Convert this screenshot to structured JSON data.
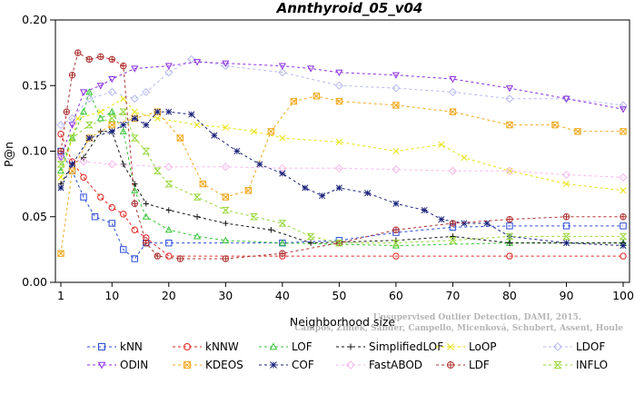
{
  "chart_data": {
    "type": "line",
    "title": "Annthyroid_05_v04",
    "xlabel": "Neighborhood size",
    "ylabel": "P@n",
    "xlim": [
      1,
      100
    ],
    "ylim": [
      0,
      0.2
    ],
    "xticks": [
      1,
      10,
      20,
      30,
      40,
      50,
      60,
      70,
      80,
      90,
      100
    ],
    "yticks": [
      "0.00",
      "0.05",
      "0.10",
      "0.15",
      "0.20"
    ],
    "credit": [
      "Campos, Zimek, Sander, Campello, Micenková, Schubert, Assent, Houle",
      "Unsupervised Outlier Detection, DAMI, 2015."
    ],
    "legend_placement": "bottom",
    "series": [
      {
        "name": "kNN",
        "color": "#2b4cd8",
        "marker": "square",
        "points": [
          [
            1,
            0.1
          ],
          [
            3,
            0.085
          ],
          [
            5,
            0.065
          ],
          [
            7,
            0.05
          ],
          [
            10,
            0.045
          ],
          [
            12,
            0.025
          ],
          [
            14,
            0.018
          ],
          [
            16,
            0.03
          ],
          [
            20,
            0.03
          ],
          [
            40,
            0.03
          ],
          [
            50,
            0.032
          ],
          [
            60,
            0.038
          ],
          [
            70,
            0.042
          ],
          [
            80,
            0.043
          ],
          [
            90,
            0.043
          ],
          [
            100,
            0.043
          ]
        ]
      },
      {
        "name": "kNNW",
        "color": "#e0241f",
        "marker": "circle",
        "points": [
          [
            1,
            0.113
          ],
          [
            3,
            0.092
          ],
          [
            5,
            0.08
          ],
          [
            8,
            0.065
          ],
          [
            10,
            0.057
          ],
          [
            12,
            0.052
          ],
          [
            14,
            0.04
          ],
          [
            16,
            0.034
          ],
          [
            20,
            0.02
          ],
          [
            40,
            0.02
          ],
          [
            60,
            0.02
          ],
          [
            80,
            0.02
          ],
          [
            100,
            0.02
          ]
        ]
      },
      {
        "name": "LOF",
        "color": "#33c433",
        "marker": "triangle-up",
        "points": [
          [
            1,
            0.085
          ],
          [
            3,
            0.11
          ],
          [
            5,
            0.13
          ],
          [
            6,
            0.145
          ],
          [
            8,
            0.125
          ],
          [
            10,
            0.13
          ],
          [
            12,
            0.115
          ],
          [
            14,
            0.07
          ],
          [
            16,
            0.05
          ],
          [
            20,
            0.04
          ],
          [
            25,
            0.035
          ],
          [
            30,
            0.032
          ],
          [
            40,
            0.03
          ],
          [
            60,
            0.028
          ],
          [
            80,
            0.03
          ],
          [
            100,
            0.03
          ]
        ]
      },
      {
        "name": "SimplifiedLOF",
        "color": "#111111",
        "marker": "plus",
        "points": [
          [
            1,
            0.075
          ],
          [
            3,
            0.09
          ],
          [
            5,
            0.095
          ],
          [
            8,
            0.115
          ],
          [
            10,
            0.115
          ],
          [
            12,
            0.09
          ],
          [
            14,
            0.075
          ],
          [
            16,
            0.06
          ],
          [
            20,
            0.055
          ],
          [
            25,
            0.05
          ],
          [
            30,
            0.045
          ],
          [
            38,
            0.04
          ],
          [
            45,
            0.03
          ],
          [
            60,
            0.032
          ],
          [
            70,
            0.035
          ],
          [
            80,
            0.03
          ],
          [
            100,
            0.03
          ]
        ]
      },
      {
        "name": "LoOP",
        "color": "#e8e20e",
        "marker": "x",
        "points": [
          [
            1,
            0.08
          ],
          [
            4,
            0.125
          ],
          [
            8,
            0.13
          ],
          [
            12,
            0.14
          ],
          [
            14,
            0.13
          ],
          [
            18,
            0.125
          ],
          [
            25,
            0.12
          ],
          [
            30,
            0.118
          ],
          [
            35,
            0.115
          ],
          [
            40,
            0.11
          ],
          [
            50,
            0.107
          ],
          [
            60,
            0.1
          ],
          [
            68,
            0.105
          ],
          [
            72,
            0.095
          ],
          [
            80,
            0.085
          ],
          [
            90,
            0.075
          ],
          [
            100,
            0.07
          ]
        ]
      },
      {
        "name": "LDOF",
        "color": "#b6b9ee",
        "marker": "diamond",
        "points": [
          [
            1,
            0.12
          ],
          [
            3,
            0.125
          ],
          [
            6,
            0.14
          ],
          [
            10,
            0.145
          ],
          [
            14,
            0.14
          ],
          [
            16,
            0.145
          ],
          [
            20,
            0.16
          ],
          [
            24,
            0.17
          ],
          [
            30,
            0.165
          ],
          [
            40,
            0.16
          ],
          [
            50,
            0.15
          ],
          [
            60,
            0.148
          ],
          [
            70,
            0.145
          ],
          [
            80,
            0.14
          ],
          [
            90,
            0.14
          ],
          [
            100,
            0.135
          ]
        ]
      },
      {
        "name": "ODIN",
        "color": "#8b2ee0",
        "marker": "triangle-down",
        "points": [
          [
            1,
            0.095
          ],
          [
            3,
            0.12
          ],
          [
            5,
            0.145
          ],
          [
            8,
            0.15
          ],
          [
            10,
            0.155
          ],
          [
            14,
            0.163
          ],
          [
            20,
            0.165
          ],
          [
            25,
            0.168
          ],
          [
            30,
            0.167
          ],
          [
            40,
            0.165
          ],
          [
            45,
            0.163
          ],
          [
            50,
            0.16
          ],
          [
            60,
            0.158
          ],
          [
            70,
            0.155
          ],
          [
            80,
            0.148
          ],
          [
            90,
            0.14
          ],
          [
            100,
            0.132
          ]
        ]
      },
      {
        "name": "KDEOS",
        "color": "#f0a81c",
        "marker": "boxed-cross",
        "points": [
          [
            1,
            0.022
          ],
          [
            3,
            0.085
          ],
          [
            6,
            0.11
          ],
          [
            10,
            0.12
          ],
          [
            14,
            0.125
          ],
          [
            18,
            0.13
          ],
          [
            22,
            0.11
          ],
          [
            26,
            0.075
          ],
          [
            30,
            0.065
          ],
          [
            34,
            0.07
          ],
          [
            38,
            0.115
          ],
          [
            42,
            0.138
          ],
          [
            46,
            0.142
          ],
          [
            50,
            0.138
          ],
          [
            60,
            0.135
          ],
          [
            70,
            0.13
          ],
          [
            80,
            0.12
          ],
          [
            88,
            0.12
          ],
          [
            92,
            0.115
          ],
          [
            100,
            0.115
          ]
        ]
      },
      {
        "name": "COF",
        "color": "#17207a",
        "marker": "asterisk",
        "points": [
          [
            1,
            0.072
          ],
          [
            3,
            0.09
          ],
          [
            6,
            0.11
          ],
          [
            10,
            0.115
          ],
          [
            12,
            0.12
          ],
          [
            14,
            0.125
          ],
          [
            16,
            0.12
          ],
          [
            18,
            0.13
          ],
          [
            20,
            0.13
          ],
          [
            24,
            0.128
          ],
          [
            28,
            0.112
          ],
          [
            32,
            0.1
          ],
          [
            36,
            0.09
          ],
          [
            40,
            0.083
          ],
          [
            44,
            0.072
          ],
          [
            47,
            0.066
          ],
          [
            50,
            0.072
          ],
          [
            55,
            0.068
          ],
          [
            60,
            0.06
          ],
          [
            65,
            0.055
          ],
          [
            68,
            0.048
          ],
          [
            72,
            0.045
          ],
          [
            76,
            0.045
          ],
          [
            80,
            0.035
          ],
          [
            90,
            0.03
          ],
          [
            100,
            0.028
          ]
        ]
      },
      {
        "name": "FastABOD",
        "color": "#f7b8ec",
        "marker": "open-diamond",
        "points": [
          [
            1,
            0.095
          ],
          [
            5,
            0.092
          ],
          [
            10,
            0.09
          ],
          [
            20,
            0.088
          ],
          [
            30,
            0.088
          ],
          [
            40,
            0.087
          ],
          [
            50,
            0.087
          ],
          [
            60,
            0.086
          ],
          [
            70,
            0.085
          ],
          [
            80,
            0.085
          ],
          [
            90,
            0.082
          ],
          [
            100,
            0.08
          ]
        ]
      },
      {
        "name": "LDF",
        "color": "#b03030",
        "marker": "boxed-circle",
        "points": [
          [
            1,
            0.1
          ],
          [
            2,
            0.13
          ],
          [
            3,
            0.158
          ],
          [
            4,
            0.175
          ],
          [
            6,
            0.17
          ],
          [
            8,
            0.172
          ],
          [
            10,
            0.17
          ],
          [
            12,
            0.165
          ],
          [
            14,
            0.06
          ],
          [
            16,
            0.03
          ],
          [
            18,
            0.02
          ],
          [
            22,
            0.018
          ],
          [
            30,
            0.018
          ],
          [
            40,
            0.022
          ],
          [
            50,
            0.03
          ],
          [
            60,
            0.04
          ],
          [
            70,
            0.045
          ],
          [
            80,
            0.048
          ],
          [
            90,
            0.05
          ],
          [
            100,
            0.05
          ]
        ]
      },
      {
        "name": "INFLO",
        "color": "#98d63a",
        "marker": "hourglass",
        "points": [
          [
            1,
            0.09
          ],
          [
            3,
            0.11
          ],
          [
            6,
            0.12
          ],
          [
            10,
            0.125
          ],
          [
            12,
            0.13
          ],
          [
            14,
            0.11
          ],
          [
            16,
            0.1
          ],
          [
            18,
            0.085
          ],
          [
            20,
            0.075
          ],
          [
            25,
            0.065
          ],
          [
            30,
            0.055
          ],
          [
            35,
            0.05
          ],
          [
            40,
            0.045
          ],
          [
            45,
            0.035
          ],
          [
            50,
            0.03
          ],
          [
            60,
            0.03
          ],
          [
            70,
            0.032
          ],
          [
            80,
            0.035
          ],
          [
            90,
            0.035
          ],
          [
            100,
            0.035
          ]
        ]
      }
    ]
  }
}
